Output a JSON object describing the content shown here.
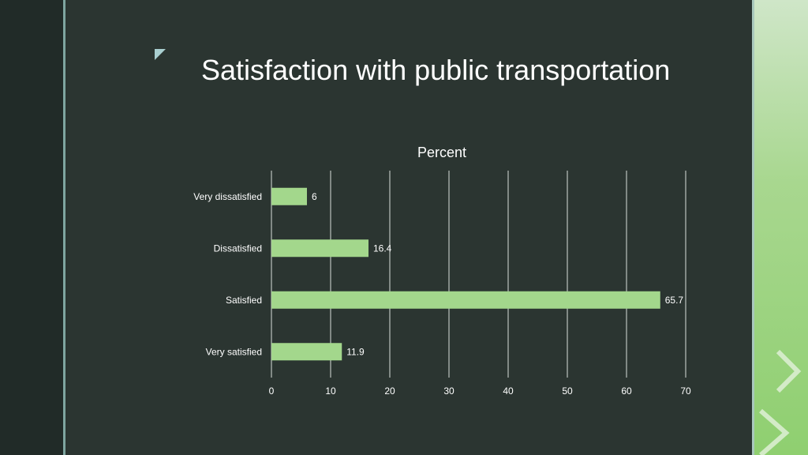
{
  "slide": {
    "title": "Satisfaction with public transportation"
  },
  "colors": {
    "background": "#2b3531",
    "bar": "#a3d78c",
    "grid": "#d9dedb",
    "text": "#ffffff",
    "accent": "#8fcf70"
  },
  "icons": {
    "corner": "triangle-corner-icon"
  },
  "chart_data": {
    "type": "bar",
    "orientation": "horizontal",
    "title": "Percent",
    "categories": [
      "Very dissatisfied",
      "Dissatisfied",
      "Satisfied",
      "Very satisfied"
    ],
    "values": [
      6,
      16.4,
      65.7,
      11.9
    ],
    "value_labels": [
      "6",
      "16.4",
      "65.7",
      "11.9"
    ],
    "xlim": [
      0,
      70
    ],
    "xticks": [
      "0",
      "10",
      "20",
      "30",
      "40",
      "50",
      "60",
      "70"
    ],
    "grid": true,
    "legend": "none"
  }
}
